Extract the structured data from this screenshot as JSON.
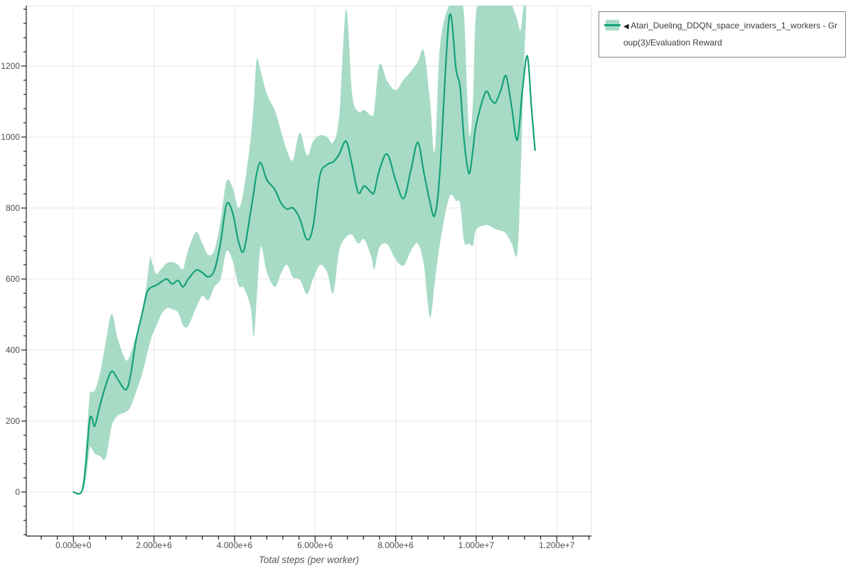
{
  "window": {
    "background": "#ffffff"
  },
  "legend": {
    "arrow": "◀",
    "label": "Atari_Dueling_DDQN_space_invaders_1_workers - Group(3)/Evaluation Reward"
  },
  "chart_data": {
    "type": "line",
    "title": "",
    "xlabel": "Total steps (per worker)",
    "ylabel": "",
    "grid": true,
    "legend_position": "top-right",
    "x_domain": [
      -1170000,
      12860000
    ],
    "y_domain": [
      -124,
      1370
    ],
    "x_ticks": {
      "values": [
        0,
        2000000,
        4000000,
        6000000,
        8000000,
        10000000,
        12000000
      ],
      "labels": [
        "0.000e+0",
        "2.000e+6",
        "4.000e+6",
        "6.000e+6",
        "8.000e+6",
        "1.000e+7",
        "1.200e+7"
      ],
      "minor_step": 400000
    },
    "y_ticks": {
      "values": [
        0,
        200,
        400,
        600,
        800,
        1000,
        1200
      ],
      "labels": [
        "0",
        "200",
        "400",
        "600",
        "800",
        "1000",
        "1200"
      ],
      "minor_step": 40
    },
    "colors": {
      "line": "#15a17b",
      "band": "#a7dbc6",
      "grid": "#e8e8e8",
      "plot_border": "#e2e2e2",
      "axis": "#1f1f1f",
      "tick_label": "#4d4d4d",
      "axis_label": "#555555",
      "legend_border": "#828282",
      "legend_text": "#3a3a3a"
    },
    "series": [
      {
        "name": "Atari_Dueling_DDQN_space_invaders_1_workers - Group(3)/Evaluation Reward",
        "x_e6": [
          0.0,
          0.2,
          0.3,
          0.4,
          0.46,
          0.53,
          0.65,
          0.8,
          0.95,
          1.1,
          1.3,
          1.42,
          1.55,
          1.7,
          1.82,
          1.9,
          1.95,
          2.05,
          2.18,
          2.32,
          2.45,
          2.6,
          2.72,
          2.85,
          3.05,
          3.2,
          3.35,
          3.5,
          3.65,
          3.8,
          3.95,
          4.1,
          4.23,
          4.4,
          4.48,
          4.55,
          4.65,
          4.8,
          5.0,
          5.15,
          5.3,
          5.45,
          5.62,
          5.8,
          5.95,
          6.12,
          6.3,
          6.45,
          6.6,
          6.77,
          6.92,
          7.07,
          7.22,
          7.4,
          7.47,
          7.6,
          7.79,
          8.0,
          8.2,
          8.38,
          8.55,
          8.7,
          8.85,
          8.97,
          9.1,
          9.33,
          9.5,
          9.6,
          9.7,
          9.82,
          9.92,
          10.0,
          10.23,
          10.37,
          10.48,
          10.62,
          10.74,
          10.88,
          11.02,
          11.15,
          11.27,
          11.37,
          11.46
        ],
        "mean": [
          0,
          0,
          70,
          200,
          208,
          186,
          240,
          300,
          340,
          318,
          288,
          330,
          425,
          500,
          560,
          574,
          578,
          582,
          592,
          600,
          586,
          596,
          578,
          600,
          625,
          618,
          606,
          625,
          700,
          810,
          788,
          705,
          680,
          790,
          847,
          898,
          928,
          880,
          852,
          815,
          797,
          800,
          770,
          711,
          748,
          892,
          922,
          930,
          952,
          988,
          920,
          843,
          862,
          843,
          846,
          908,
          952,
          878,
          827,
          908,
          985,
          900,
          818,
          780,
          905,
          1338,
          1190,
          1140,
          990,
          897,
          965,
          1035,
          1126,
          1105,
          1097,
          1135,
          1172,
          1085,
          992,
          1135,
          1228,
          1085,
          963
        ],
        "band_x_e6": [
          0.0,
          0.2,
          0.3,
          0.4,
          0.46,
          0.53,
          0.65,
          0.8,
          0.95,
          1.1,
          1.3,
          1.42,
          1.55,
          1.7,
          1.82,
          1.9,
          1.95,
          2.05,
          2.18,
          2.32,
          2.45,
          2.6,
          2.72,
          2.85,
          3.05,
          3.2,
          3.35,
          3.5,
          3.65,
          3.8,
          3.95,
          4.1,
          4.23,
          4.4,
          4.48,
          4.55,
          4.65,
          4.8,
          5.0,
          5.15,
          5.3,
          5.45,
          5.62,
          5.8,
          5.95,
          6.12,
          6.3,
          6.45,
          6.6,
          6.77,
          6.92,
          7.07,
          7.22,
          7.4,
          7.47,
          7.6,
          7.79,
          8.0,
          8.2,
          8.38,
          8.55,
          8.7,
          8.85,
          8.97,
          9.1,
          9.33,
          9.5,
          9.6,
          9.7,
          9.82,
          9.92,
          10.0,
          10.23,
          10.37,
          10.48,
          10.62,
          10.74,
          10.88,
          11.02,
          11.1,
          11.18,
          11.24
        ],
        "band_lower": [
          0,
          0,
          30,
          120,
          122,
          108,
          102,
          95,
          185,
          215,
          225,
          240,
          280,
          330,
          385,
          420,
          440,
          465,
          500,
          518,
          515,
          505,
          470,
          468,
          520,
          552,
          540,
          578,
          600,
          678,
          652,
          582,
          575,
          520,
          437,
          545,
          690,
          620,
          578,
          615,
          640,
          605,
          598,
          558,
          600,
          640,
          618,
          560,
          680,
          718,
          724,
          700,
          712,
          660,
          628,
          690,
          698,
          655,
          638,
          680,
          700,
          640,
          492,
          590,
          700,
          830,
          820,
          812,
          705,
          700,
          695,
          740,
          752,
          748,
          740,
          736,
          728,
          700,
          672,
          880,
          1180,
          1340
        ],
        "band_upper": [
          0,
          0,
          110,
          268,
          282,
          286,
          330,
          420,
          502,
          432,
          372,
          390,
          440,
          505,
          588,
          660,
          648,
          615,
          628,
          645,
          648,
          640,
          628,
          682,
          732,
          700,
          668,
          682,
          762,
          875,
          858,
          800,
          852,
          995,
          1100,
          1218,
          1185,
          1122,
          1075,
          1018,
          962,
          935,
          1012,
          948,
          988,
          1005,
          1000,
          985,
          1062,
          1360,
          1120,
          1072,
          1076,
          1060,
          1078,
          1205,
          1158,
          1132,
          1162,
          1185,
          1212,
          1242,
          1105,
          960,
          1255,
          1372,
          1372,
          1372,
          1340,
          1015,
          1100,
          1350,
          1372,
          1372,
          1372,
          1372,
          1372,
          1372,
          1330,
          1300,
          1372,
          1372
        ]
      }
    ]
  }
}
